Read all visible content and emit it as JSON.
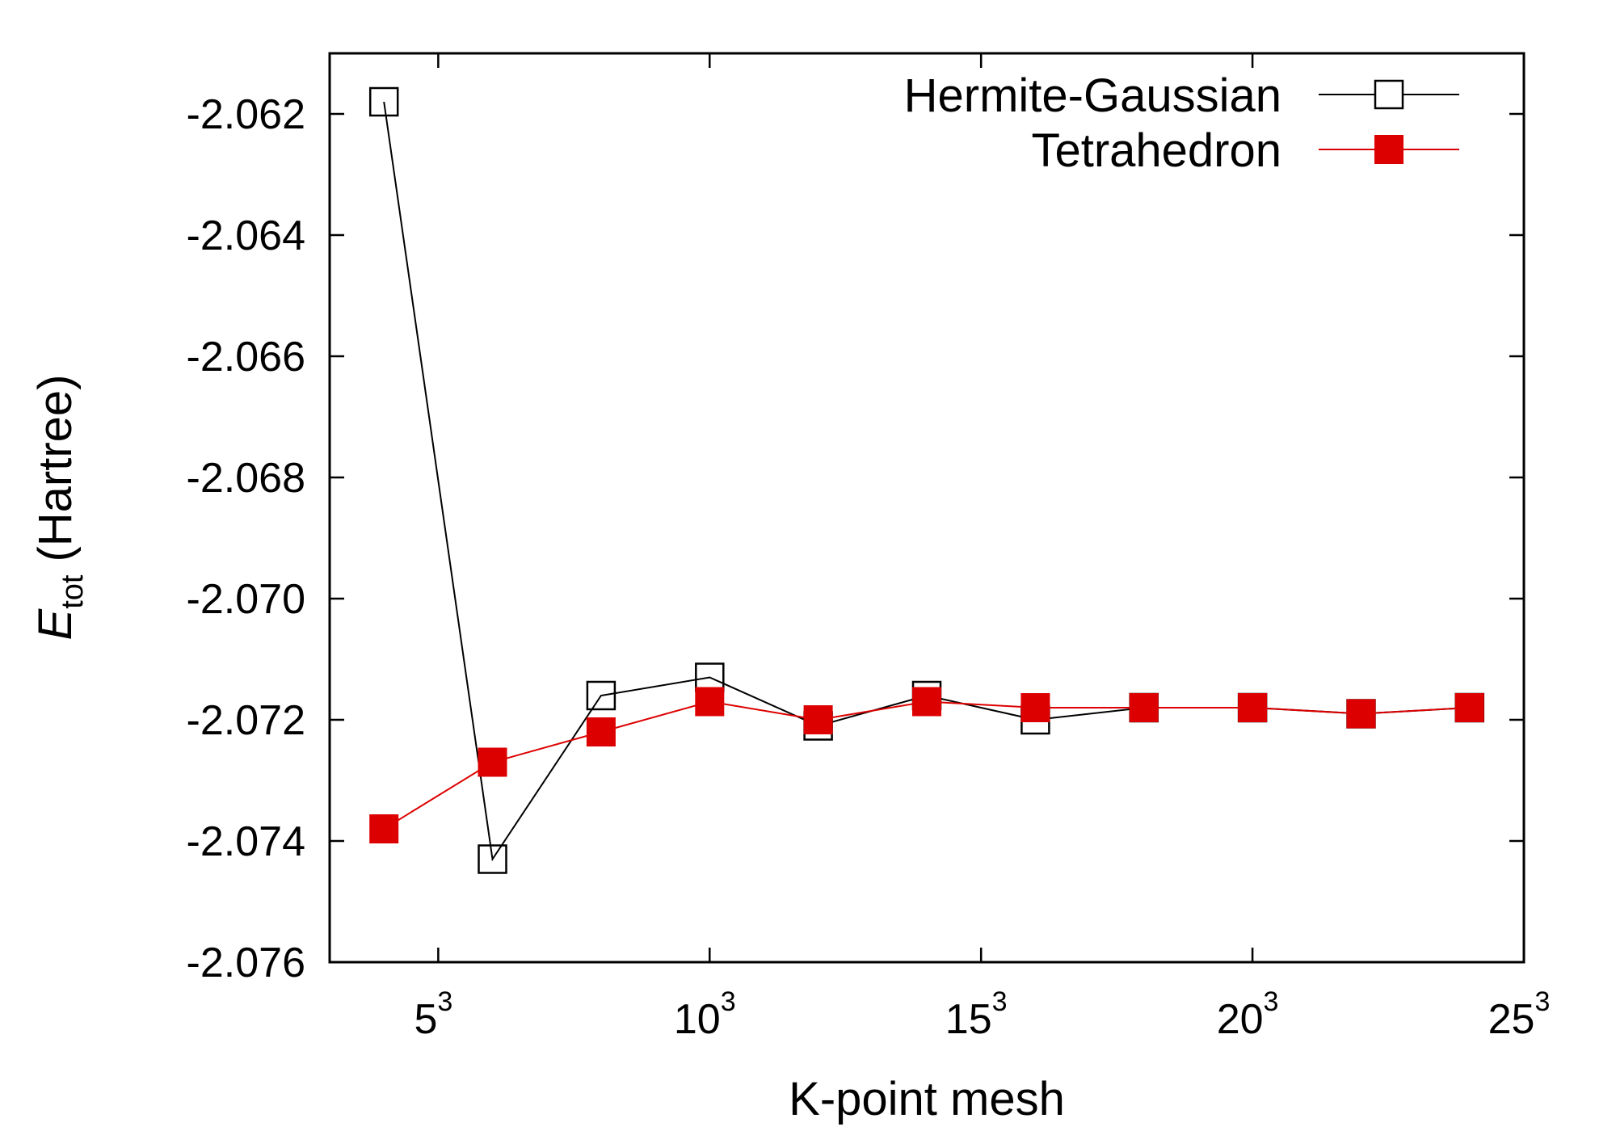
{
  "chart_data": {
    "type": "line",
    "xlabel": "K-point mesh",
    "ylabel": {
      "symbol": "E",
      "subscript": "tot",
      "unit": "(Hartree)"
    },
    "xlim": [
      3,
      25
    ],
    "ylim": [
      -2.076,
      -2.061
    ],
    "x_ticks": [
      {
        "value": 5,
        "base": "5",
        "exponent": "3"
      },
      {
        "value": 10,
        "base": "10",
        "exponent": "3"
      },
      {
        "value": 15,
        "base": "15",
        "exponent": "3"
      },
      {
        "value": 20,
        "base": "20",
        "exponent": "3"
      },
      {
        "value": 25,
        "base": "25",
        "exponent": "3"
      }
    ],
    "y_ticks": [
      {
        "value": -2.062,
        "label": "-2.062"
      },
      {
        "value": -2.064,
        "label": "-2.064"
      },
      {
        "value": -2.066,
        "label": "-2.066"
      },
      {
        "value": -2.068,
        "label": "-2.068"
      },
      {
        "value": -2.07,
        "label": "-2.070"
      },
      {
        "value": -2.072,
        "label": "-2.072"
      },
      {
        "value": -2.074,
        "label": "-2.074"
      },
      {
        "value": -2.076,
        "label": "-2.076"
      }
    ],
    "legend_position": "top-right",
    "series": [
      {
        "name": "Hermite-Gaussian",
        "color": "#000000",
        "marker": "open-square",
        "x": [
          4,
          6,
          8,
          10,
          12,
          14,
          16,
          18,
          20,
          22,
          24
        ],
        "y": [
          -2.0618,
          -2.0743,
          -2.0716,
          -2.0713,
          -2.0721,
          -2.0716,
          -2.072,
          -2.0718,
          -2.0718,
          -2.0719,
          -2.0718
        ]
      },
      {
        "name": "Tetrahedron",
        "color": "#dd0000",
        "marker": "filled-square",
        "x": [
          4,
          6,
          8,
          10,
          12,
          14,
          16,
          18,
          20,
          22,
          24
        ],
        "y": [
          -2.0738,
          -2.0727,
          -2.0722,
          -2.0717,
          -2.072,
          -2.0717,
          -2.0718,
          -2.0718,
          -2.0718,
          -2.0719,
          -2.0718
        ]
      }
    ]
  }
}
